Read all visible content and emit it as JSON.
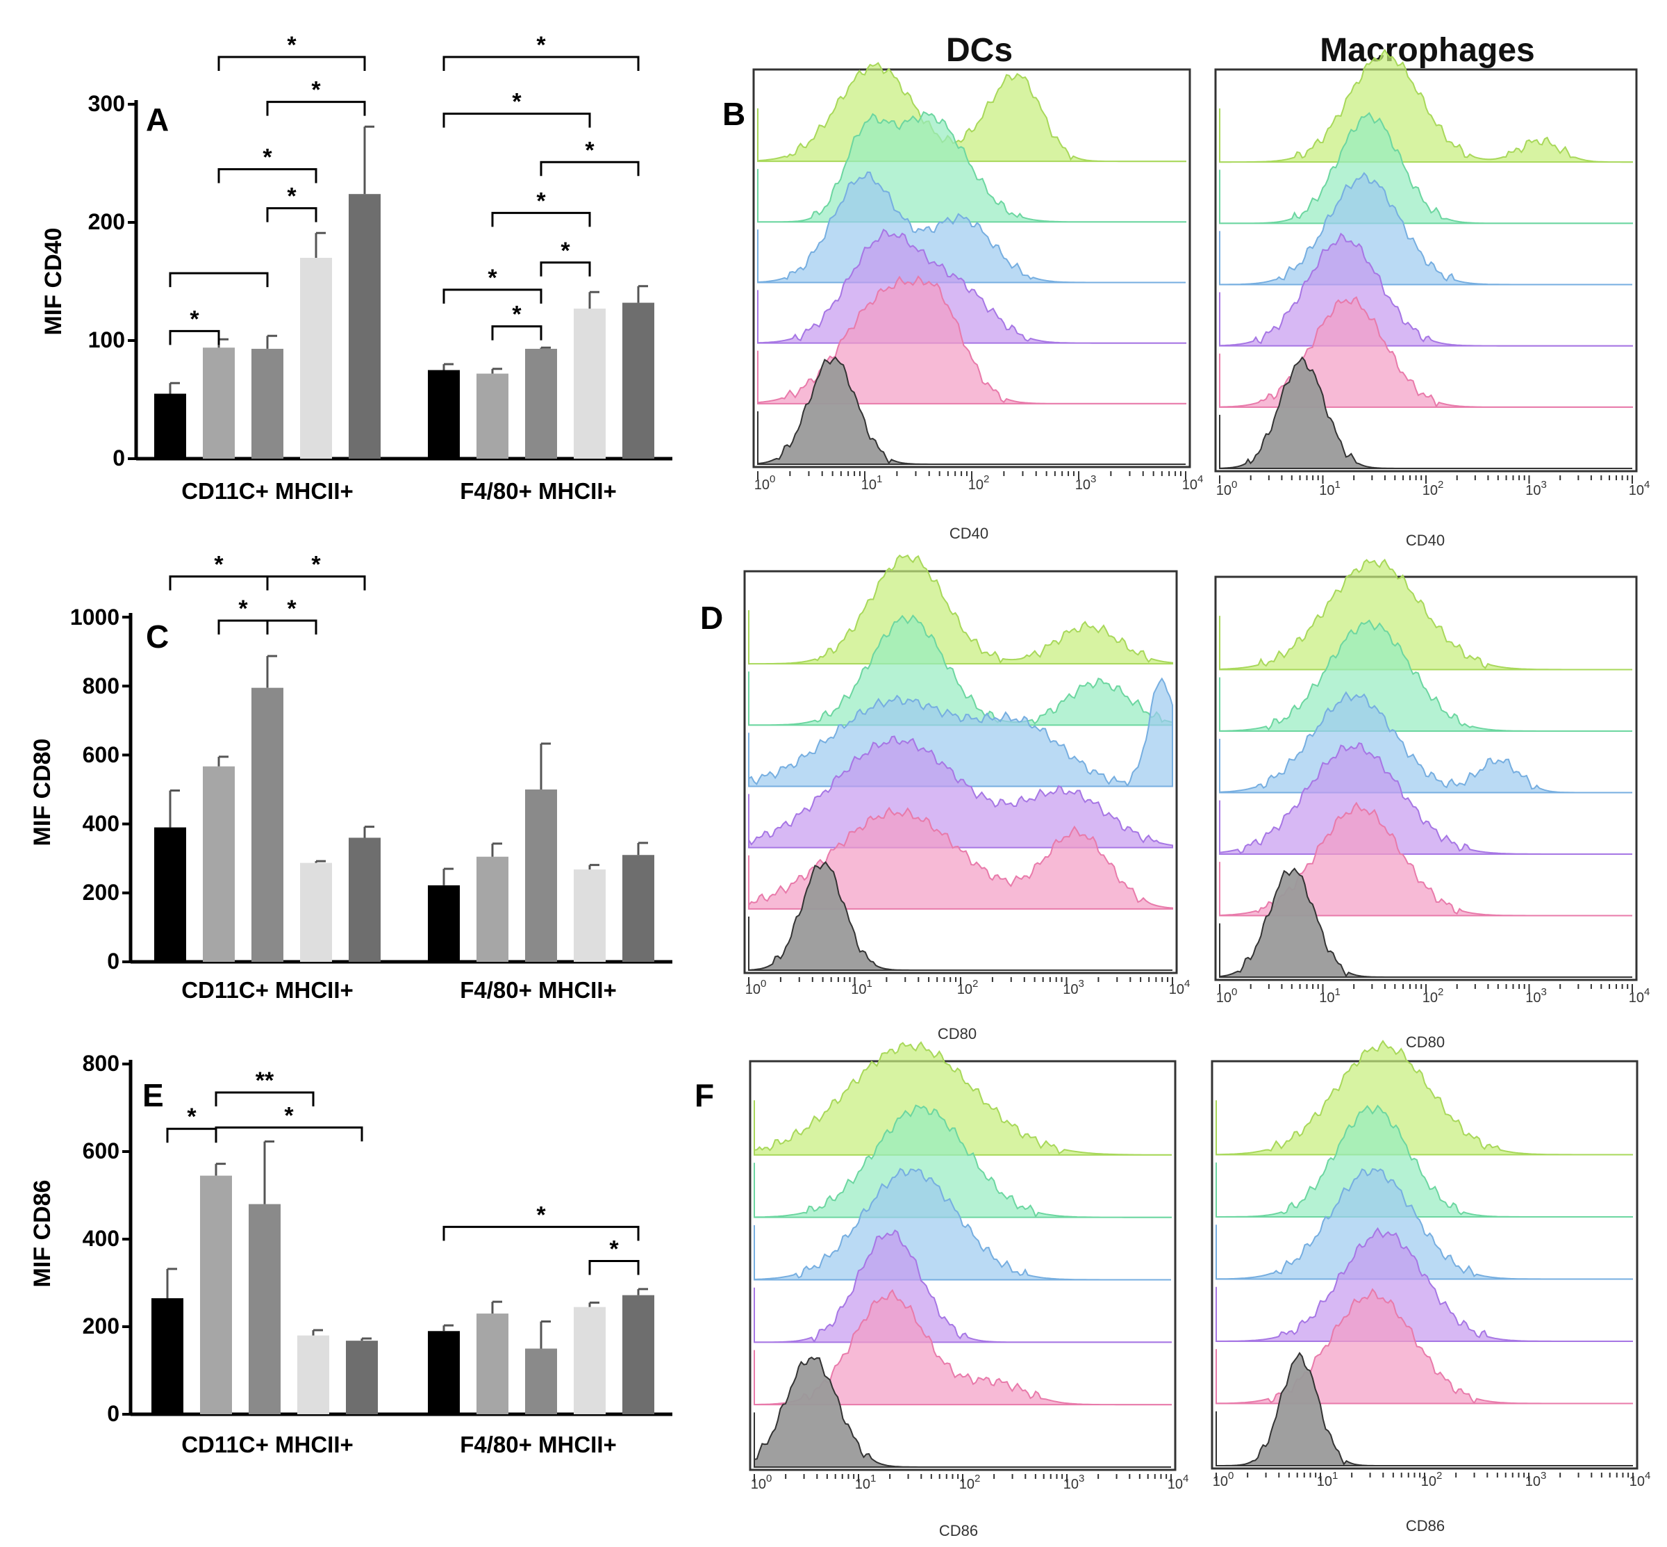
{
  "column_titles": {
    "dcs": "DCs",
    "macrophages": "Macrophages"
  },
  "palette": {
    "bars": [
      "#000000",
      "#a6a6a6",
      "#8a8a8a",
      "#dedede",
      "#6e6e6e"
    ],
    "hist_fills": [
      "#c6ee7a",
      "#96ecc0",
      "#9ccaf0",
      "#c69af0",
      "#f49cc4",
      "#9a9a9a"
    ],
    "hist_strokes": [
      "#a8d85a",
      "#6cd6a0",
      "#76aee0",
      "#a676e4",
      "#e87aaa",
      "#333333"
    ]
  },
  "chart_data": [
    {
      "type": "bar",
      "panel": "A",
      "ylabel": "MIF CD40",
      "ylim": [
        0,
        300
      ],
      "yticks": [
        "0",
        "100",
        "200",
        "300"
      ],
      "categories": [
        "CD11C+ MHCII+",
        "F4/80+ MHCII+"
      ],
      "series_count": 5,
      "values": [
        [
          55,
          94,
          93,
          170,
          224
        ],
        [
          75,
          72,
          93,
          127,
          132
        ]
      ],
      "errors": [
        [
          9,
          7,
          11,
          21,
          57
        ],
        [
          5,
          4,
          1,
          14,
          14
        ]
      ],
      "significance": [
        {
          "group": 0,
          "from": 0,
          "to": 1,
          "level": 108,
          "label": "*"
        },
        {
          "group": 0,
          "from": 0,
          "to": 2,
          "level": 157,
          "label": ""
        },
        {
          "group": 0,
          "from": 2,
          "to": 3,
          "level": 212,
          "label": "*"
        },
        {
          "group": 0,
          "from": 1,
          "to": 3,
          "level": 245,
          "label": "*"
        },
        {
          "group": 0,
          "from": 2,
          "to": 4,
          "level": 302,
          "label": "*"
        },
        {
          "group": 0,
          "from": 1,
          "to": 4,
          "level": 340,
          "label": "*"
        },
        {
          "group": 1,
          "from": 0,
          "to": 2,
          "level": 143,
          "label": "*"
        },
        {
          "group": 1,
          "from": 1,
          "to": 2,
          "level": 112,
          "label": "*"
        },
        {
          "group": 1,
          "from": 2,
          "to": 3,
          "level": 166,
          "label": "*"
        },
        {
          "group": 1,
          "from": 1,
          "to": 3,
          "level": 208,
          "label": "*"
        },
        {
          "group": 1,
          "from": 2,
          "to": 4,
          "level": 251,
          "label": "*"
        },
        {
          "group": 1,
          "from": 0,
          "to": 3,
          "level": 292,
          "label": "*"
        },
        {
          "group": 1,
          "from": 0,
          "to": 4,
          "level": 340,
          "label": "*"
        }
      ]
    },
    {
      "type": "bar",
      "panel": "C",
      "ylabel": "MIF CD80",
      "ylim": [
        0,
        1000
      ],
      "yticks": [
        "0",
        "200",
        "400",
        "600",
        "800",
        "1000"
      ],
      "categories": [
        "CD11C+ MHCII+",
        "F4/80+ MHCII+"
      ],
      "series_count": 5,
      "values": [
        [
          390,
          567,
          795,
          287,
          360
        ],
        [
          222,
          305,
          500,
          268,
          310
        ]
      ],
      "errors": [
        [
          107,
          28,
          92,
          5,
          32
        ],
        [
          48,
          38,
          133,
          13,
          35
        ]
      ],
      "significance": [
        {
          "group": 0,
          "from": 1,
          "to": 2,
          "level": 990,
          "label": "*"
        },
        {
          "group": 0,
          "from": 2,
          "to": 3,
          "level": 990,
          "label": "*"
        },
        {
          "group": 0,
          "from": 0,
          "to": 2,
          "level": 1118,
          "label": "*"
        },
        {
          "group": 0,
          "from": 2,
          "to": 4,
          "level": 1118,
          "label": "*"
        }
      ]
    },
    {
      "type": "bar",
      "panel": "E",
      "ylabel": "MIF CD86",
      "ylim": [
        0,
        800
      ],
      "yticks": [
        "0",
        "200",
        "400",
        "600",
        "800"
      ],
      "categories": [
        "CD11C+ MHCII+",
        "F4/80+ MHCII+"
      ],
      "series_count": 5,
      "values": [
        [
          265,
          545,
          480,
          180,
          168
        ],
        [
          190,
          230,
          150,
          245,
          272
        ]
      ],
      "errors": [
        [
          67,
          27,
          143,
          12,
          5
        ],
        [
          13,
          27,
          62,
          10,
          14
        ]
      ],
      "significance": [
        {
          "group": 0,
          "from": 0,
          "to": 1,
          "level": 652,
          "label": "*"
        },
        {
          "group": 0,
          "from": 1,
          "to": 3,
          "level": 735,
          "label": "**"
        },
        {
          "group": 0,
          "from": 1,
          "to": 4,
          "level": 655,
          "label": "*"
        },
        {
          "group": 1,
          "from": 4,
          "to": 3,
          "level": 350,
          "label": "*"
        },
        {
          "group": 1,
          "from": 0,
          "to": 4,
          "level": 428,
          "label": "*"
        }
      ]
    },
    {
      "type": "area",
      "panel": "B",
      "title_dcs": "DCs",
      "title_macrophages": "Macrophages",
      "xlabel": "CD40",
      "xscale": "log",
      "xticks": [
        "0",
        "1",
        "2",
        "3",
        "4"
      ],
      "xtick_base": "10",
      "tracks": 6,
      "dcs_peaks": [
        [
          {
            "x": 1.1,
            "h": 0.9,
            "w": 0.35
          },
          {
            "x": 2.3,
            "h": 0.5,
            "w": 0.25
          },
          {
            "x": 2.5,
            "h": 0.4,
            "w": 0.2
          }
        ],
        [
          {
            "x": 1.6,
            "h": 1.0,
            "w": 0.35
          },
          {
            "x": 1.0,
            "h": 0.7,
            "w": 0.2
          }
        ],
        [
          {
            "x": 1.0,
            "h": 1.0,
            "w": 0.3
          },
          {
            "x": 1.9,
            "h": 0.6,
            "w": 0.3
          }
        ],
        [
          {
            "x": 1.2,
            "h": 1.0,
            "w": 0.35
          },
          {
            "x": 1.9,
            "h": 0.45,
            "w": 0.3
          }
        ],
        [
          {
            "x": 1.2,
            "h": 1.0,
            "w": 0.4
          },
          {
            "x": 1.7,
            "h": 0.6,
            "w": 0.25
          }
        ],
        [
          {
            "x": 0.7,
            "h": 1.0,
            "w": 0.22
          }
        ]
      ],
      "mac_peaks": [
        [
          {
            "x": 1.6,
            "h": 1.0,
            "w": 0.35
          },
          {
            "x": 3.1,
            "h": 0.2,
            "w": 0.2
          }
        ],
        [
          {
            "x": 1.45,
            "h": 1.0,
            "w": 0.3
          }
        ],
        [
          {
            "x": 1.4,
            "h": 1.0,
            "w": 0.35
          }
        ],
        [
          {
            "x": 1.2,
            "h": 1.0,
            "w": 0.35
          }
        ],
        [
          {
            "x": 1.25,
            "h": 1.0,
            "w": 0.35
          }
        ],
        [
          {
            "x": 0.8,
            "h": 1.0,
            "w": 0.22
          }
        ]
      ]
    },
    {
      "type": "area",
      "panel": "D",
      "xlabel": "CD80",
      "xscale": "log",
      "xticks": [
        "0",
        "1",
        "2",
        "3",
        "4"
      ],
      "xtick_base": "10",
      "tracks": 6,
      "dcs_peaks": [
        [
          {
            "x": 1.5,
            "h": 1.0,
            "w": 0.35
          },
          {
            "x": 3.2,
            "h": 0.35,
            "w": 0.3
          }
        ],
        [
          {
            "x": 1.5,
            "h": 1.0,
            "w": 0.35
          },
          {
            "x": 3.3,
            "h": 0.4,
            "w": 0.3
          }
        ],
        [
          {
            "x": 1.4,
            "h": 0.8,
            "w": 0.6
          },
          {
            "x": 3.9,
            "h": 1.0,
            "w": 0.12
          },
          {
            "x": 2.6,
            "h": 0.5,
            "w": 0.4
          }
        ],
        [
          {
            "x": 1.4,
            "h": 1.0,
            "w": 0.6
          },
          {
            "x": 3.0,
            "h": 0.5,
            "w": 0.4
          }
        ],
        [
          {
            "x": 1.4,
            "h": 0.9,
            "w": 0.6
          },
          {
            "x": 3.1,
            "h": 0.7,
            "w": 0.3
          }
        ],
        [
          {
            "x": 0.7,
            "h": 1.0,
            "w": 0.2
          }
        ]
      ],
      "mac_peaks": [
        [
          {
            "x": 1.5,
            "h": 1.0,
            "w": 0.45
          }
        ],
        [
          {
            "x": 1.45,
            "h": 1.0,
            "w": 0.4
          }
        ],
        [
          {
            "x": 1.3,
            "h": 0.9,
            "w": 0.4
          },
          {
            "x": 2.7,
            "h": 0.3,
            "w": 0.2
          }
        ],
        [
          {
            "x": 1.3,
            "h": 1.0,
            "w": 0.45
          }
        ],
        [
          {
            "x": 1.35,
            "h": 1.0,
            "w": 0.4
          }
        ],
        [
          {
            "x": 0.7,
            "h": 1.0,
            "w": 0.22
          }
        ]
      ]
    },
    {
      "type": "area",
      "panel": "F",
      "xlabel": "CD86",
      "xscale": "log",
      "xticks": [
        "0",
        "1",
        "2",
        "3",
        "4"
      ],
      "xtick_base": "10",
      "tracks": 6,
      "dcs_peaks": [
        [
          {
            "x": 1.5,
            "h": 1.0,
            "w": 0.6
          }
        ],
        [
          {
            "x": 1.6,
            "h": 1.0,
            "w": 0.45
          }
        ],
        [
          {
            "x": 1.5,
            "h": 1.0,
            "w": 0.45
          }
        ],
        [
          {
            "x": 1.3,
            "h": 1.0,
            "w": 0.3
          }
        ],
        [
          {
            "x": 1.3,
            "h": 1.0,
            "w": 0.35
          },
          {
            "x": 2.3,
            "h": 0.2,
            "w": 0.3
          }
        ],
        [
          {
            "x": 0.55,
            "h": 1.0,
            "w": 0.25
          }
        ]
      ],
      "mac_peaks": [
        [
          {
            "x": 1.6,
            "h": 1.0,
            "w": 0.45
          }
        ],
        [
          {
            "x": 1.5,
            "h": 1.0,
            "w": 0.35
          }
        ],
        [
          {
            "x": 1.5,
            "h": 1.0,
            "w": 0.4
          }
        ],
        [
          {
            "x": 1.6,
            "h": 1.0,
            "w": 0.4
          }
        ],
        [
          {
            "x": 1.5,
            "h": 1.0,
            "w": 0.4
          }
        ],
        [
          {
            "x": 0.8,
            "h": 1.0,
            "w": 0.18
          }
        ]
      ]
    }
  ]
}
